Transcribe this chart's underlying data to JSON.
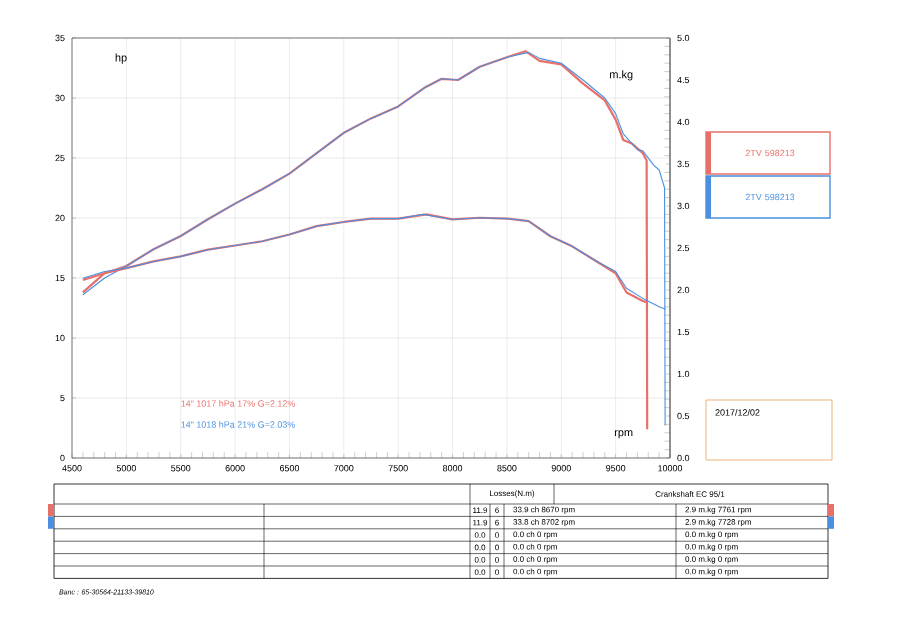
{
  "chart_data": {
    "type": "line",
    "xlabel": "rpm",
    "ylabel": "hp",
    "y2label": "m.kg",
    "xlim": [
      4500,
      10000
    ],
    "xticks": [
      4500,
      5000,
      5500,
      6000,
      6500,
      7000,
      7500,
      8000,
      8500,
      9000,
      9500,
      10000
    ],
    "ylim": [
      0,
      35
    ],
    "yticks": [
      0,
      5,
      10,
      15,
      20,
      25,
      30,
      35
    ],
    "y2lim": [
      0,
      5
    ],
    "y2ticks": [
      {
        "value": 0,
        "label": "0.0"
      },
      {
        "value": 0.5,
        "label": "0.5"
      },
      {
        "value": 1,
        "label": "1.0"
      },
      {
        "value": 1.5,
        "label": "1.5"
      },
      {
        "value": 2,
        "label": "2.0"
      },
      {
        "value": 2.5,
        "label": "2.5"
      },
      {
        "value": 3,
        "label": "3.0"
      },
      {
        "value": 3.5,
        "label": "3.5"
      },
      {
        "value": 4,
        "label": "4.0"
      },
      {
        "value": 4.5,
        "label": "4.5"
      },
      {
        "value": 5,
        "label": "5.0"
      }
    ],
    "grid": true,
    "legend": "right",
    "marker": "none",
    "line_style": "solid",
    "series": [
      {
        "name": "2TV 598213",
        "color": "#e8706a",
        "x": [
          4600,
          4800,
          5000,
          5250,
          5500,
          5750,
          6000,
          6250,
          6500,
          6750,
          7000,
          7250,
          7500,
          7750,
          7900,
          8050,
          8250,
          8500,
          8670,
          8800,
          9000,
          9200,
          9400,
          9500,
          9570,
          9650,
          9750,
          9785,
          9790
        ],
        "values": [
          13.8,
          15.4,
          16.0,
          17.4,
          18.5,
          19.9,
          21.2,
          22.4,
          23.7,
          25.4,
          27.1,
          28.3,
          29.3,
          30.9,
          31.6,
          31.5,
          32.6,
          33.4,
          33.9,
          33.1,
          32.8,
          31.2,
          29.8,
          28.2,
          26.5,
          26.2,
          25.4,
          24.8,
          2.4
        ]
      },
      {
        "name": "2TV 598213",
        "color": "#4a8fe0",
        "x": [
          4600,
          4800,
          5000,
          5250,
          5500,
          5750,
          6000,
          6250,
          6500,
          6750,
          7000,
          7250,
          7500,
          7750,
          7900,
          8050,
          8250,
          8500,
          8700,
          8800,
          9000,
          9200,
          9400,
          9500,
          9570,
          9700,
          9750,
          9850,
          9900,
          9950,
          9955
        ],
        "values": [
          13.6,
          15.0,
          16.0,
          17.4,
          18.5,
          19.9,
          21.2,
          22.4,
          23.7,
          25.4,
          27.1,
          28.3,
          29.3,
          30.9,
          31.6,
          31.5,
          32.6,
          33.4,
          33.8,
          33.3,
          32.9,
          31.5,
          30.0,
          28.7,
          27.0,
          25.7,
          25.6,
          24.4,
          24.0,
          22.5,
          2.7
        ]
      },
      {
        "color": "#e8706a",
        "axis": "y2",
        "x": [
          4600,
          4800,
          5000,
          5250,
          5500,
          5750,
          6000,
          6250,
          6500,
          6750,
          7000,
          7250,
          7500,
          7761,
          8000,
          8250,
          8500,
          8700,
          8900,
          9100,
          9300,
          9500,
          9600,
          9750,
          9790
        ],
        "values": [
          2.12,
          2.2,
          2.26,
          2.34,
          2.4,
          2.48,
          2.53,
          2.58,
          2.66,
          2.76,
          2.81,
          2.85,
          2.85,
          2.9,
          2.84,
          2.86,
          2.85,
          2.82,
          2.64,
          2.52,
          2.36,
          2.2,
          1.97,
          1.87,
          1.85
        ]
      },
      {
        "color": "#4a8fe0",
        "axis": "y2",
        "x": [
          4600,
          4800,
          5000,
          5250,
          5500,
          5750,
          6000,
          6250,
          6500,
          6750,
          7000,
          7250,
          7500,
          7728,
          8000,
          8250,
          8500,
          8700,
          8900,
          9100,
          9300,
          9500,
          9600,
          9750,
          9900,
          9960
        ],
        "values": [
          2.14,
          2.22,
          2.26,
          2.34,
          2.4,
          2.48,
          2.53,
          2.58,
          2.66,
          2.76,
          2.81,
          2.85,
          2.85,
          2.9,
          2.84,
          2.86,
          2.85,
          2.82,
          2.64,
          2.52,
          2.36,
          2.22,
          2.02,
          1.9,
          1.8,
          1.77
        ]
      }
    ],
    "annotations": [
      "14\" 1017 hPa 17% G=2.12%",
      "14\" 1018 hPa 21% G=2.03%",
      "2017/12/02",
      "Losses(N.m)",
      "Crankshaft EC 95/1",
      "11.9",
      "6",
      "33.9 ch 8670 rpm",
      "2.9 m.kg 7761 rpm",
      "11.9",
      "6",
      "33.8 ch 8702 rpm",
      "2.9 m.kg 7728 rpm",
      "0.0",
      "0",
      "0.0 ch 0 rpm",
      "0.0 m.kg 0 rpm",
      "0.0",
      "0",
      "0.0 ch 0 rpm",
      "0.0 m.kg 0 rpm",
      "0.0",
      "0",
      "0.0 ch 0 rpm",
      "0.0 m.kg 0 rpm",
      "0.0",
      "0",
      "0.0 ch 0 rpm",
      "0.0 m.kg 0 rpm",
      "Banc : 65-30564-21133-39810"
    ]
  }
}
